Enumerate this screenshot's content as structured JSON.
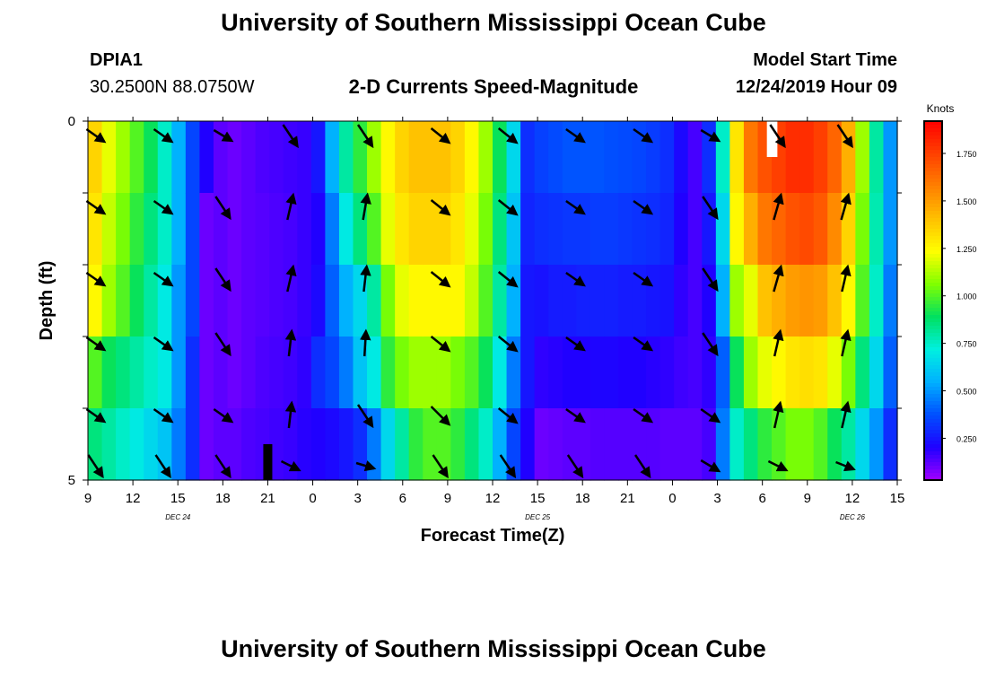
{
  "header": {
    "title": "University of Southern Mississippi Ocean Cube",
    "station_id": "DPIA1",
    "coordinates": "30.2500N 88.0750W",
    "subtitle": "2-D Currents Speed-Magnitude",
    "model_start_label": "Model Start Time",
    "model_start_value": "12/24/2019 Hour 09"
  },
  "footer": {
    "title": "University of Southern Mississippi Ocean Cube"
  },
  "colors": {
    "scale": [
      "#a000ff",
      "#1f00ff",
      "#0050ff",
      "#00b0ff",
      "#00f0e0",
      "#00e060",
      "#80ff00",
      "#ffff00",
      "#ffc000",
      "#ff8000",
      "#ff4000",
      "#ff0000"
    ],
    "background": "#ffffff"
  },
  "chart_data": {
    "type": "heatmap",
    "title": "2-D Currents Speed-Magnitude",
    "xlabel": "Forecast Time(Z)",
    "ylabel": "Depth (ft)",
    "x_tick_labels": [
      "9",
      "12",
      "15",
      "18",
      "21",
      "0",
      "3",
      "6",
      "9",
      "12",
      "15",
      "18",
      "21",
      "0",
      "3",
      "6",
      "9",
      "12",
      "15"
    ],
    "date_labels": [
      {
        "label": "DEC 24",
        "tick_index": 2
      },
      {
        "label": "DEC 25",
        "tick_index": 10
      },
      {
        "label": "DEC 26",
        "tick_index": 17
      }
    ],
    "y_tick_labels": [
      {
        "value": 0,
        "label": "0"
      },
      {
        "value": 5,
        "label": "5"
      }
    ],
    "ylim": [
      0,
      5
    ],
    "x_hours_range": [
      0,
      54
    ],
    "colorbar": {
      "label": "Knots",
      "range": [
        0.03,
        1.92
      ],
      "ticks": [
        0.25,
        0.5,
        0.75,
        1.0,
        1.25,
        1.5,
        1.75
      ],
      "tick_labels": [
        "0.250",
        "0.500",
        "0.750",
        "1.000",
        "1.250",
        "1.500",
        "1.750"
      ]
    },
    "layers": 5,
    "time_columns": [
      {
        "speeds": [
          1.35,
          1.3,
          1.25,
          1.0,
          0.85
        ]
      },
      {
        "speeds": [
          1.2,
          1.15,
          1.1,
          0.9,
          0.8
        ]
      },
      {
        "speeds": [
          1.1,
          1.05,
          1.0,
          0.85,
          0.75
        ]
      },
      {
        "speeds": [
          1.0,
          0.95,
          0.9,
          0.8,
          0.7
        ]
      },
      {
        "speeds": [
          0.9,
          0.85,
          0.8,
          0.75,
          0.65
        ]
      },
      {
        "speeds": [
          0.75,
          0.75,
          0.7,
          0.7,
          0.6
        ]
      },
      {
        "speeds": [
          0.55,
          0.55,
          0.5,
          0.5,
          0.45
        ]
      },
      {
        "speeds": [
          0.35,
          0.35,
          0.35,
          0.3,
          0.3
        ]
      },
      {
        "speeds": [
          0.2,
          0.1,
          0.1,
          0.1,
          0.1
        ]
      },
      {
        "speeds": [
          0.12,
          0.12,
          0.12,
          0.12,
          0.12
        ]
      },
      {
        "speeds": [
          0.1,
          0.1,
          0.1,
          0.1,
          0.12
        ]
      },
      {
        "speeds": [
          0.12,
          0.12,
          0.12,
          0.12,
          0.14
        ]
      },
      {
        "speeds": [
          0.14,
          0.13,
          0.13,
          0.14,
          0.15
        ]
      },
      {
        "speeds": [
          0.15,
          0.14,
          0.14,
          0.15,
          0.16
        ]
      },
      {
        "speeds": [
          0.16,
          0.15,
          0.15,
          0.16,
          0.17
        ]
      },
      {
        "speeds": [
          0.17,
          0.17,
          0.17,
          0.18,
          0.19
        ]
      },
      {
        "speeds": [
          0.25,
          0.2,
          0.22,
          0.3,
          0.2
        ]
      },
      {
        "speeds": [
          0.55,
          0.45,
          0.4,
          0.35,
          0.22
        ]
      },
      {
        "speeds": [
          0.8,
          0.7,
          0.55,
          0.45,
          0.25
        ]
      },
      {
        "speeds": [
          0.95,
          0.85,
          0.65,
          0.6,
          0.3
        ]
      },
      {
        "speeds": [
          1.1,
          1.0,
          0.8,
          0.7,
          0.45
        ]
      },
      {
        "speeds": [
          1.25,
          1.2,
          1.05,
          0.95,
          0.65
        ]
      },
      {
        "speeds": [
          1.35,
          1.3,
          1.2,
          1.05,
          0.8
        ]
      },
      {
        "speeds": [
          1.4,
          1.35,
          1.25,
          1.1,
          0.95
        ]
      },
      {
        "speeds": [
          1.4,
          1.35,
          1.25,
          1.1,
          1.0
        ]
      },
      {
        "speeds": [
          1.4,
          1.35,
          1.25,
          1.1,
          1.0
        ]
      },
      {
        "speeds": [
          1.35,
          1.3,
          1.25,
          1.05,
          0.95
        ]
      },
      {
        "speeds": [
          1.25,
          1.2,
          1.15,
          1.0,
          0.85
        ]
      },
      {
        "speeds": [
          1.1,
          1.05,
          1.0,
          0.9,
          0.75
        ]
      },
      {
        "speeds": [
          0.9,
          0.85,
          0.8,
          0.7,
          0.55
        ]
      },
      {
        "speeds": [
          0.65,
          0.6,
          0.55,
          0.45,
          0.35
        ]
      },
      {
        "speeds": [
          0.3,
          0.28,
          0.25,
          0.25,
          0.2
        ]
      },
      {
        "speeds": [
          0.34,
          0.3,
          0.24,
          0.18,
          0.1
        ]
      },
      {
        "speeds": [
          0.36,
          0.31,
          0.26,
          0.19,
          0.11
        ]
      },
      {
        "speeds": [
          0.38,
          0.32,
          0.26,
          0.2,
          0.12
        ]
      },
      {
        "speeds": [
          0.38,
          0.32,
          0.27,
          0.2,
          0.12
        ]
      },
      {
        "speeds": [
          0.38,
          0.33,
          0.27,
          0.21,
          0.13
        ]
      },
      {
        "speeds": [
          0.37,
          0.33,
          0.27,
          0.21,
          0.13
        ]
      },
      {
        "speeds": [
          0.36,
          0.32,
          0.26,
          0.2,
          0.13
        ]
      },
      {
        "speeds": [
          0.35,
          0.31,
          0.26,
          0.2,
          0.13
        ]
      },
      {
        "speeds": [
          0.33,
          0.3,
          0.25,
          0.19,
          0.13
        ]
      },
      {
        "speeds": [
          0.3,
          0.28,
          0.24,
          0.18,
          0.12
        ]
      },
      {
        "speeds": [
          0.22,
          0.2,
          0.18,
          0.16,
          0.12
        ]
      },
      {
        "speeds": [
          0.15,
          0.15,
          0.15,
          0.15,
          0.12
        ]
      },
      {
        "speeds": [
          0.3,
          0.25,
          0.2,
          0.18,
          0.15
        ]
      },
      {
        "speeds": [
          0.75,
          0.65,
          0.55,
          0.4,
          0.45
        ]
      },
      {
        "speeds": [
          1.3,
          1.25,
          1.1,
          0.9,
          0.75
        ]
      },
      {
        "speeds": [
          1.6,
          1.45,
          1.2,
          1.1,
          0.85
        ]
      },
      {
        "speeds": [
          1.7,
          1.6,
          1.4,
          1.2,
          0.95
        ]
      },
      {
        "speeds": [
          1.75,
          1.65,
          1.45,
          1.25,
          1.0
        ]
      },
      {
        "speeds": [
          1.8,
          1.7,
          1.5,
          1.3,
          1.05
        ]
      },
      {
        "speeds": [
          1.8,
          1.72,
          1.52,
          1.32,
          1.05
        ]
      },
      {
        "speeds": [
          1.75,
          1.68,
          1.5,
          1.3,
          1.0
        ]
      },
      {
        "speeds": [
          1.65,
          1.55,
          1.4,
          1.2,
          0.9
        ]
      },
      {
        "speeds": [
          1.45,
          1.35,
          1.25,
          1.05,
          0.8
        ]
      },
      {
        "speeds": [
          1.1,
          1.05,
          1.0,
          0.85,
          0.65
        ]
      },
      {
        "speeds": [
          0.8,
          0.78,
          0.75,
          0.65,
          0.5
        ]
      },
      {
        "speeds": [
          0.5,
          0.5,
          0.45,
          0.4,
          0.3
        ]
      }
    ],
    "vector_rows_depth_index": [
      0,
      1,
      2,
      3,
      4,
      5
    ],
    "vectors": [
      {
        "hour": 0.5,
        "dir": [
          0.7,
          0.7,
          0.7,
          0.7,
          0.7,
          0.0
        ]
      },
      {
        "hour": 5,
        "dir": [
          0.7,
          0.7,
          0.7,
          0.7,
          0.7,
          0.0
        ]
      },
      {
        "hour": 9,
        "dir": [
          0.6,
          0.0,
          0.0,
          0.0,
          0.7,
          0.0
        ]
      },
      {
        "hour": 13.5,
        "dir": [
          0.0,
          -0.4,
          -0.4,
          -0.2,
          -0.2,
          0.5
        ]
      },
      {
        "hour": 18.5,
        "dir": [
          0.0,
          -0.3,
          -0.2,
          -0.1,
          0.0,
          0.3
        ]
      },
      {
        "hour": 23.5,
        "dir": [
          0.8,
          0.8,
          0.8,
          0.8,
          1.0,
          0.0
        ]
      },
      {
        "hour": 28,
        "dir": [
          0.8,
          0.8,
          0.8,
          0.8,
          0.8,
          0.0
        ]
      },
      {
        "hour": 32.5,
        "dir": [
          0.7,
          0.7,
          0.7,
          0.7,
          0.7,
          0.0
        ]
      },
      {
        "hour": 37,
        "dir": [
          0.7,
          0.7,
          0.7,
          0.7,
          0.7,
          0.0
        ]
      },
      {
        "hour": 41.5,
        "dir": [
          0.6,
          0.0,
          0.0,
          0.0,
          0.7,
          0.6
        ]
      },
      {
        "hour": 46,
        "dir": [
          0.0,
          -0.5,
          -0.5,
          -0.4,
          -0.4,
          0.5
        ]
      },
      {
        "hour": 50.5,
        "dir": [
          0.0,
          -0.5,
          -0.4,
          -0.4,
          -0.4,
          0.4
        ]
      }
    ],
    "missing_cells": [
      {
        "hour_start": 45.3,
        "hour_end": 46.0,
        "depth_start": 0.0,
        "depth_end": 0.5,
        "color": "#ffffff"
      },
      {
        "hour_start": 11.7,
        "hour_end": 12.3,
        "depth_start": 4.5,
        "depth_end": 5.0,
        "color": "#000000"
      }
    ]
  }
}
